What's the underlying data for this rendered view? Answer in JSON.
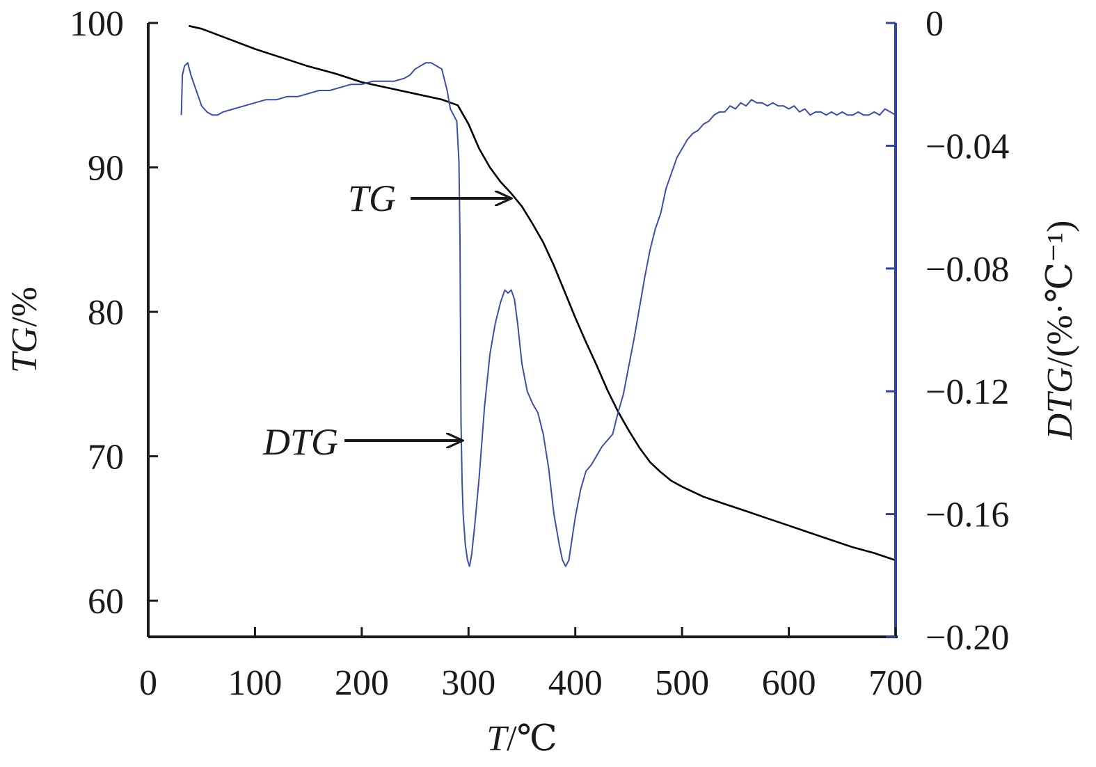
{
  "chart_data": {
    "type": "line",
    "x_axis": {
      "label_var": "T",
      "label_unit": "/℃",
      "range": [
        0,
        700
      ],
      "ticks": [
        0,
        100,
        200,
        300,
        400,
        500,
        600,
        700
      ]
    },
    "y_axis_left": {
      "label_var": "TG",
      "label_unit": "/%",
      "range": [
        57.5,
        100
      ],
      "ticks": [
        60,
        70,
        80,
        90,
        100
      ]
    },
    "y_axis_right": {
      "label_var": "DTG",
      "label_unit": "/(%·℃⁻¹)",
      "range": [
        -0.2,
        0
      ],
      "ticks": [
        0,
        -0.04,
        -0.08,
        -0.12,
        -0.16,
        -0.2
      ],
      "tick_labels": [
        "0",
        "−0.04",
        "−0.08",
        "−0.12",
        "−0.16",
        "−0.20"
      ]
    },
    "grid": false,
    "legend": "none",
    "annotations": [
      {
        "text": "TG",
        "target_series": "TG",
        "points_at": [
          345,
          88
        ]
      },
      {
        "text": "DTG",
        "target_series": "DTG",
        "points_at": [
          293,
          -0.136
        ]
      }
    ],
    "series": [
      {
        "name": "TG",
        "axis": "left",
        "color": "#000000",
        "x": [
          38,
          50,
          75,
          100,
          125,
          150,
          175,
          200,
          225,
          250,
          275,
          290,
          300,
          310,
          320,
          330,
          340,
          350,
          360,
          370,
          380,
          390,
          400,
          410,
          420,
          430,
          440,
          450,
          460,
          470,
          480,
          490,
          500,
          520,
          540,
          560,
          580,
          600,
          620,
          640,
          660,
          680,
          700
        ],
        "y": [
          99.8,
          99.6,
          98.9,
          98.2,
          97.6,
          97.0,
          96.5,
          95.9,
          95.5,
          95.1,
          94.7,
          94.3,
          93.0,
          91.3,
          90.0,
          89.0,
          88.2,
          87.3,
          86.1,
          84.8,
          83.2,
          81.4,
          79.6,
          77.9,
          76.3,
          74.6,
          73.1,
          71.8,
          70.6,
          69.6,
          68.9,
          68.3,
          67.9,
          67.2,
          66.7,
          66.2,
          65.7,
          65.2,
          64.7,
          64.2,
          63.7,
          63.3,
          62.8
        ]
      },
      {
        "name": "DTG",
        "axis": "right",
        "color": "#3c4ea3",
        "x": [
          31,
          32,
          34,
          37,
          40,
          45,
          50,
          55,
          60,
          65,
          70,
          80,
          90,
          100,
          110,
          120,
          130,
          140,
          150,
          160,
          170,
          180,
          190,
          200,
          210,
          220,
          230,
          240,
          245,
          250,
          255,
          260,
          265,
          270,
          275,
          280,
          283,
          286,
          289,
          291,
          292,
          293,
          294,
          295,
          297,
          299,
          301,
          303,
          306,
          310,
          315,
          320,
          325,
          330,
          334,
          337,
          340,
          343,
          346,
          350,
          355,
          360,
          365,
          370,
          375,
          380,
          385,
          388,
          391,
          394,
          397,
          400,
          405,
          410,
          415,
          420,
          425,
          430,
          435,
          440,
          445,
          450,
          455,
          460,
          465,
          470,
          475,
          480,
          485,
          490,
          495,
          500,
          505,
          510,
          515,
          520,
          525,
          530,
          535,
          540,
          545,
          550,
          555,
          560,
          565,
          570,
          575,
          580,
          585,
          590,
          595,
          600,
          605,
          610,
          615,
          620,
          625,
          630,
          635,
          640,
          645,
          650,
          655,
          660,
          665,
          670,
          675,
          680,
          685,
          690,
          695,
          700
        ],
        "y": [
          -0.03,
          -0.017,
          -0.014,
          -0.013,
          -0.017,
          -0.022,
          -0.027,
          -0.029,
          -0.03,
          -0.03,
          -0.029,
          -0.028,
          -0.027,
          -0.026,
          -0.025,
          -0.025,
          -0.024,
          -0.024,
          -0.023,
          -0.022,
          -0.022,
          -0.021,
          -0.02,
          -0.02,
          -0.019,
          -0.019,
          -0.019,
          -0.018,
          -0.017,
          -0.015,
          -0.014,
          -0.013,
          -0.013,
          -0.014,
          -0.015,
          -0.022,
          -0.028,
          -0.03,
          -0.032,
          -0.045,
          -0.07,
          -0.13,
          -0.15,
          -0.16,
          -0.17,
          -0.175,
          -0.177,
          -0.173,
          -0.163,
          -0.148,
          -0.125,
          -0.108,
          -0.098,
          -0.091,
          -0.087,
          -0.088,
          -0.087,
          -0.09,
          -0.098,
          -0.111,
          -0.12,
          -0.124,
          -0.127,
          -0.134,
          -0.145,
          -0.16,
          -0.17,
          -0.175,
          -0.177,
          -0.175,
          -0.168,
          -0.161,
          -0.152,
          -0.146,
          -0.144,
          -0.141,
          -0.138,
          -0.136,
          -0.134,
          -0.127,
          -0.121,
          -0.112,
          -0.103,
          -0.093,
          -0.083,
          -0.074,
          -0.067,
          -0.062,
          -0.054,
          -0.049,
          -0.044,
          -0.041,
          -0.038,
          -0.036,
          -0.035,
          -0.033,
          -0.032,
          -0.03,
          -0.029,
          -0.029,
          -0.027,
          -0.028,
          -0.026,
          -0.027,
          -0.025,
          -0.026,
          -0.026,
          -0.027,
          -0.026,
          -0.027,
          -0.027,
          -0.028,
          -0.027,
          -0.029,
          -0.028,
          -0.03,
          -0.029,
          -0.029,
          -0.03,
          -0.029,
          -0.03,
          -0.029,
          -0.03,
          -0.03,
          -0.029,
          -0.03,
          -0.03,
          -0.029,
          -0.03,
          -0.028,
          -0.029,
          -0.03
        ]
      }
    ]
  }
}
